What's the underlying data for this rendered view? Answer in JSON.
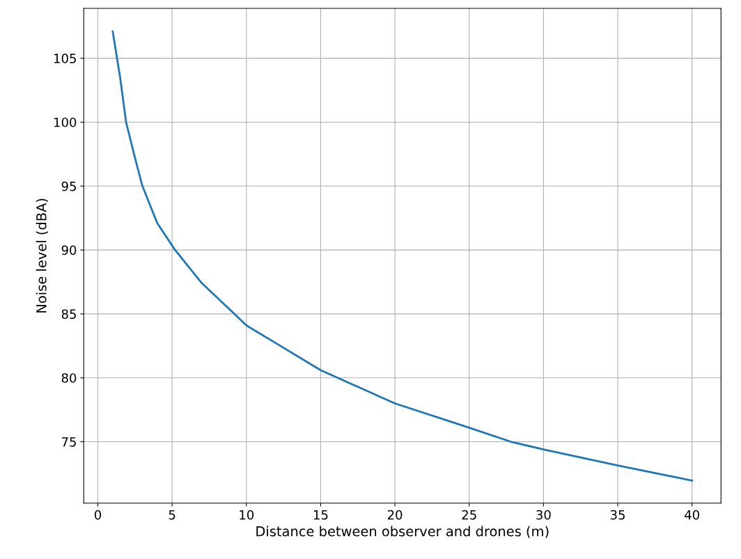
{
  "chart_data": {
    "type": "line",
    "xlabel": "Distance between observer and drones (m)",
    "ylabel": "Noise level (dBA)",
    "x": [
      1,
      1.5,
      1.9,
      2.5,
      3.0,
      4,
      5.2,
      7,
      9.2,
      10,
      12,
      15,
      20,
      25,
      27.8,
      30,
      35,
      40
    ],
    "series": [
      {
        "color": "#1f77b4",
        "values": [
          107.1,
          103.5,
          100,
          97.2,
          95,
          92.1,
          90,
          87.4,
          85,
          84.1,
          82.7,
          80.6,
          78.0,
          76.1,
          75,
          74.4,
          73.15,
          71.96
        ]
      }
    ],
    "xlim": [
      -0.95,
      41.95
    ],
    "xticks": [
      0,
      5,
      10,
      15,
      20,
      25,
      30,
      35,
      40
    ],
    "ylim": [
      70.2,
      108.9
    ],
    "yticks": [
      75,
      80,
      85,
      90,
      95,
      100,
      105
    ],
    "grid": true
  }
}
